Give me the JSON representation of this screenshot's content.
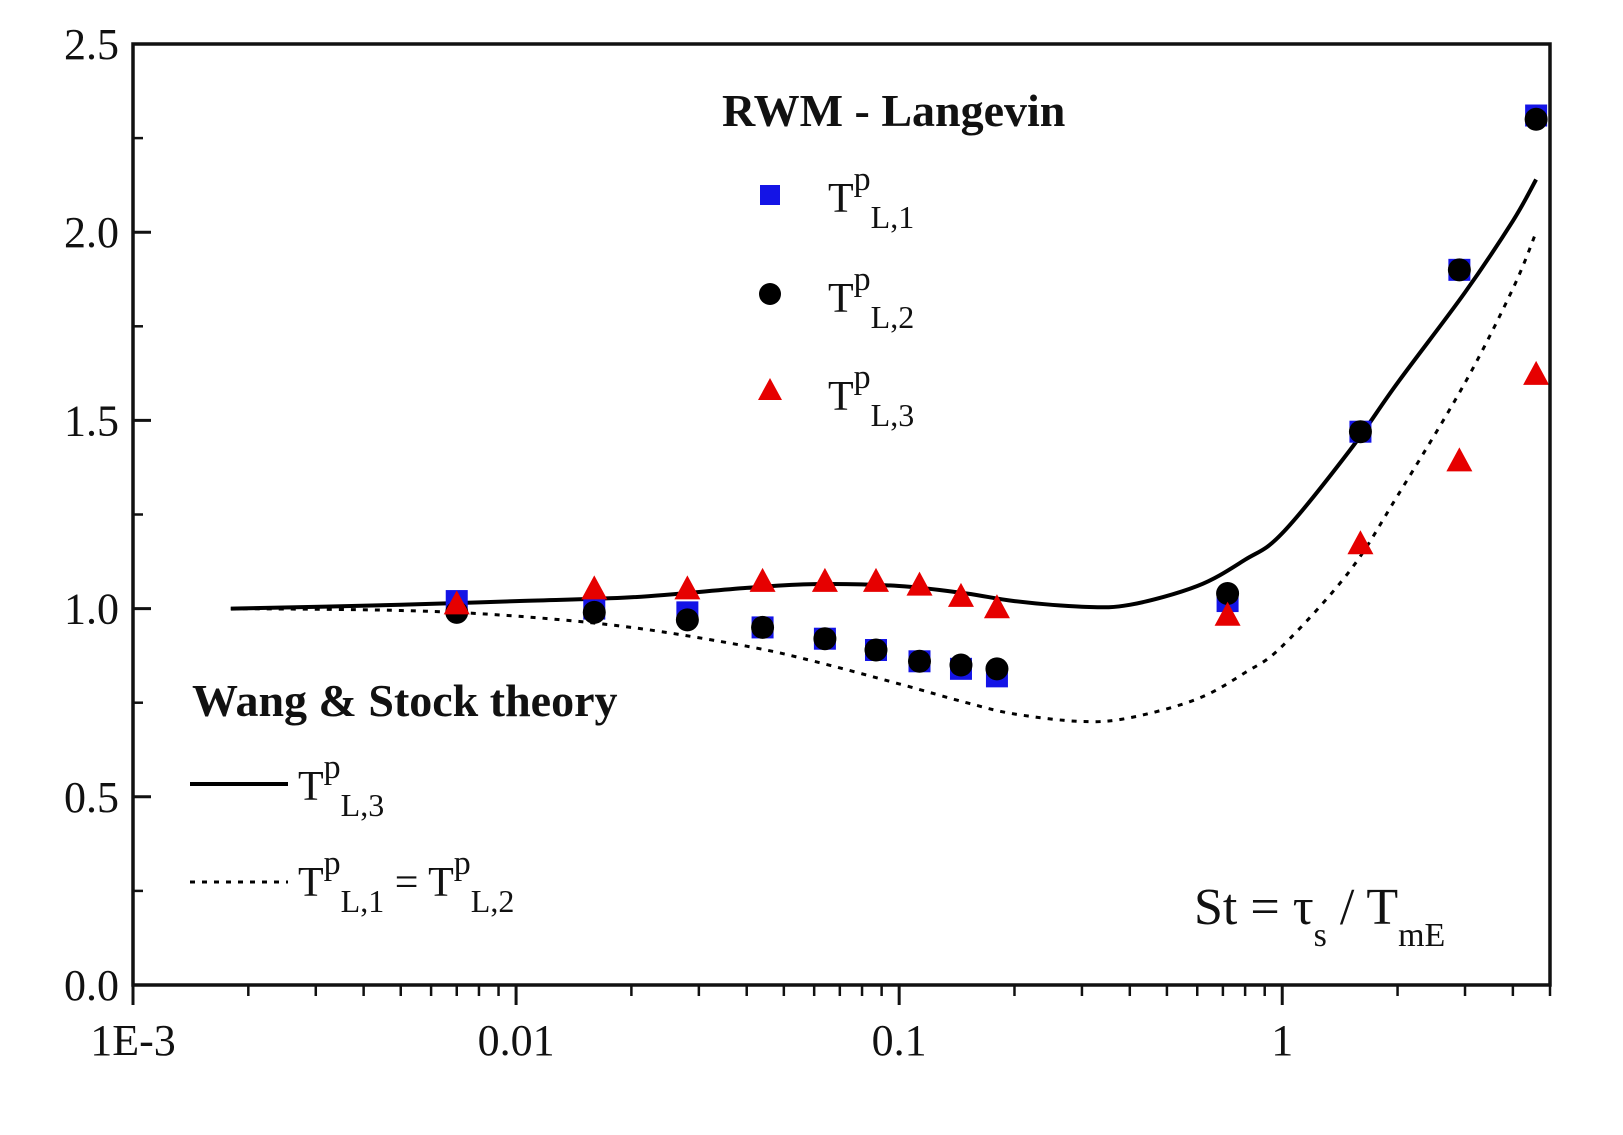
{
  "chart_data": {
    "type": "scatter",
    "x_scale": "log",
    "xlim": [
      0.001,
      5
    ],
    "ylim": [
      0,
      2.5
    ],
    "x_ticks": [
      {
        "value": 0.001,
        "label": "1E-3"
      },
      {
        "value": 0.01,
        "label": "0.01"
      },
      {
        "value": 0.1,
        "label": "0.1"
      },
      {
        "value": 1,
        "label": "1"
      }
    ],
    "y_ticks": [
      {
        "value": 0.0,
        "label": "0.0"
      },
      {
        "value": 0.5,
        "label": "0.5"
      },
      {
        "value": 1.0,
        "label": "1.0"
      },
      {
        "value": 1.5,
        "label": "1.5"
      },
      {
        "value": 2.0,
        "label": "2.0"
      },
      {
        "value": 2.5,
        "label": "2.5"
      }
    ],
    "grid": false,
    "legend_placement": "top-center and left",
    "legend_groups": [
      {
        "title": "RWM - Langevin",
        "entries": [
          "TpL,1",
          "TpL,2",
          "TpL,3"
        ]
      },
      {
        "title": "Wang & Stock theory",
        "entries": [
          "TpL,3",
          "TpL,1 = TpL,2"
        ]
      }
    ],
    "annotation": "St = τs / TmE",
    "series": [
      {
        "name": "TpL,1",
        "kind": "scatter",
        "marker": "square",
        "color": "#1414e6",
        "x": [
          0.007,
          0.016,
          0.028,
          0.044,
          0.064,
          0.087,
          0.113,
          0.145,
          0.18,
          0.72,
          1.6,
          2.9,
          4.6
        ],
        "y": [
          1.02,
          1.0,
          0.99,
          0.95,
          0.92,
          0.89,
          0.86,
          0.84,
          0.82,
          1.02,
          1.47,
          1.9,
          2.31
        ]
      },
      {
        "name": "TpL,2",
        "kind": "scatter",
        "marker": "circle",
        "color": "#000000",
        "x": [
          0.007,
          0.016,
          0.028,
          0.044,
          0.064,
          0.087,
          0.113,
          0.145,
          0.18,
          0.72,
          1.6,
          2.9,
          4.6
        ],
        "y": [
          0.99,
          0.99,
          0.97,
          0.95,
          0.92,
          0.89,
          0.86,
          0.85,
          0.84,
          1.04,
          1.47,
          1.9,
          2.3
        ]
      },
      {
        "name": "TpL,3",
        "kind": "scatter",
        "marker": "triangle",
        "color": "#e60000",
        "x": [
          0.007,
          0.016,
          0.028,
          0.044,
          0.064,
          0.087,
          0.113,
          0.145,
          0.18,
          0.72,
          1.6,
          2.9,
          4.6
        ],
        "y": [
          1.01,
          1.05,
          1.05,
          1.07,
          1.07,
          1.07,
          1.06,
          1.03,
          1.0,
          0.98,
          1.17,
          1.39,
          1.62
        ]
      },
      {
        "name": "TpL,3",
        "kind": "line",
        "dash": "solid",
        "color": "#000000",
        "x": [
          0.0018,
          0.005,
          0.01,
          0.02,
          0.04,
          0.06,
          0.1,
          0.15,
          0.2,
          0.3,
          0.4,
          0.6,
          0.8,
          1.0,
          1.5,
          2.0,
          3.0,
          4.0,
          4.6
        ],
        "y": [
          1.0,
          1.01,
          1.02,
          1.03,
          1.055,
          1.065,
          1.06,
          1.04,
          1.02,
          1.005,
          1.01,
          1.06,
          1.13,
          1.2,
          1.42,
          1.6,
          1.84,
          2.03,
          2.14
        ]
      },
      {
        "name": "TpL,1 = TpL,2",
        "kind": "line",
        "dash": "dotted",
        "color": "#000000",
        "x": [
          0.0018,
          0.005,
          0.01,
          0.02,
          0.04,
          0.06,
          0.1,
          0.15,
          0.2,
          0.3,
          0.4,
          0.6,
          0.8,
          1.0,
          1.5,
          2.0,
          3.0,
          4.0,
          4.6
        ],
        "y": [
          1.0,
          0.995,
          0.98,
          0.95,
          0.9,
          0.86,
          0.8,
          0.75,
          0.72,
          0.7,
          0.71,
          0.76,
          0.83,
          0.9,
          1.1,
          1.3,
          1.6,
          1.85,
          2.0
        ]
      }
    ]
  },
  "legend": {
    "title_top": "RWM - Langevin",
    "title_bottom": "Wang & Stock theory",
    "T": "T",
    "sup_p": "p",
    "sub_L1": "L,1",
    "sub_L2": "L,2",
    "sub_L3": "L,3",
    "equals": " = "
  },
  "annotation": {
    "lhs": "St = τ",
    "sub_s": "s",
    "mid": " / T",
    "sub_mE": "mE"
  }
}
